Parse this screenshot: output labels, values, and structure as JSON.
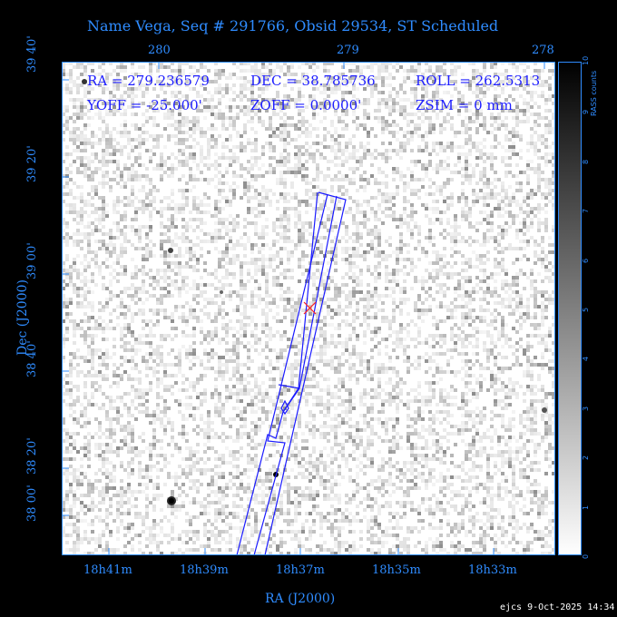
{
  "title": "Name Vega, Seq # 291766, Obsid 29534, ST Scheduled",
  "info": {
    "ra": "RA = 279.236579",
    "dec": "DEC = 38.785736",
    "roll": "ROLL = 262.5313",
    "yoff": "YOFF = -25.000'",
    "zoff": "ZOFF =  0.0000'",
    "zsim": "ZSIM = 0 mm"
  },
  "axes": {
    "xlabel": "RA (J2000)",
    "ylabel": "Dec (J2000)",
    "top_ticks": [
      "280",
      "279",
      "278"
    ],
    "bottom_ticks": [
      "18h41m",
      "18h39m",
      "18h37m",
      "18h35m",
      "18h33m"
    ],
    "left_ticks": [
      "39 40'",
      "39 20'",
      "39 00'",
      "38 40'",
      "38 20'",
      "38 00'"
    ]
  },
  "colorbar": {
    "label": "RASS counts",
    "ticks": [
      "0",
      "1",
      "2",
      "3",
      "4",
      "5",
      "6",
      "7",
      "8",
      "9",
      "10"
    ]
  },
  "footer": "ejcs  9-Oct-2025 14:34",
  "colors": {
    "frame": "#2f8cff",
    "outline": "#1a1aff",
    "marker": "#ff2020"
  }
}
